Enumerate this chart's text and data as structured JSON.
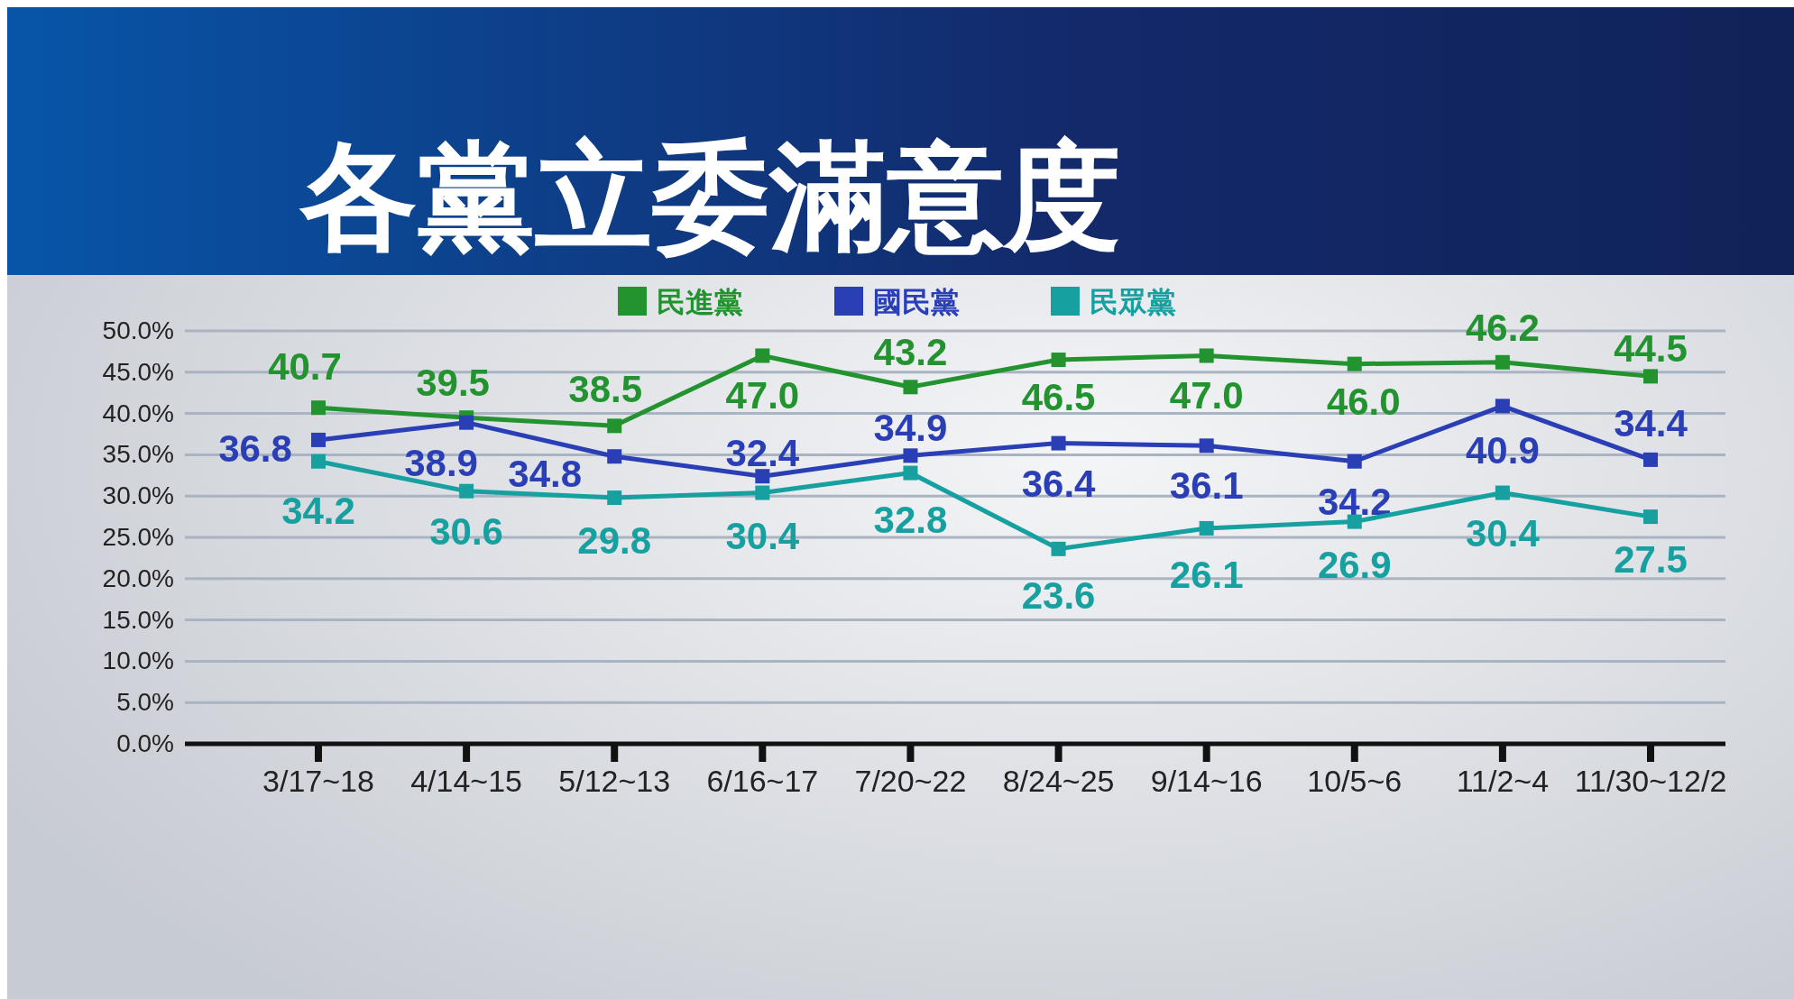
{
  "chart_data": {
    "type": "line",
    "title": "各黨立委滿意度",
    "categories": [
      "3/17~18",
      "4/14~15",
      "5/12~13",
      "6/16~17",
      "7/20~22",
      "8/24~25",
      "9/14~16",
      "10/5~6",
      "11/2~4",
      "11/30~12/2"
    ],
    "series": [
      {
        "name": "民進黨",
        "color": "#22932f",
        "values": [
          40.7,
          39.5,
          38.5,
          47.0,
          43.2,
          46.5,
          47.0,
          46.0,
          46.2,
          44.5
        ],
        "value_labels": [
          "40.7",
          "39.5",
          "38.5",
          "47.0",
          "43.2",
          "46.5",
          "47.0",
          "46.0",
          "46.2",
          "44.5"
        ]
      },
      {
        "name": "國民黨",
        "color": "#2a3fb5",
        "values": [
          36.8,
          38.9,
          34.8,
          32.4,
          34.9,
          36.4,
          36.1,
          34.2,
          40.9,
          34.4
        ],
        "value_labels": [
          "36.8",
          "38.9",
          "34.8",
          "32.4",
          "34.9",
          "36.4",
          "36.1",
          "34.2",
          "40.9",
          "34.4"
        ]
      },
      {
        "name": "民眾黨",
        "color": "#16a0a0",
        "values": [
          34.2,
          30.6,
          29.8,
          30.4,
          32.8,
          23.6,
          26.1,
          26.9,
          30.4,
          27.5
        ],
        "value_labels": [
          "34.2",
          "30.6",
          "29.8",
          "30.4",
          "32.8",
          "23.6",
          "26.1",
          "26.9",
          "30.4",
          "27.5"
        ]
      }
    ],
    "ylim": [
      0,
      50
    ],
    "yticks": [
      {
        "value": 0,
        "label": "0.0%"
      },
      {
        "value": 5,
        "label": "5.0%"
      },
      {
        "value": 10,
        "label": "10.0%"
      },
      {
        "value": 15,
        "label": "15.0%"
      },
      {
        "value": 20,
        "label": "20.0%"
      },
      {
        "value": 25,
        "label": "25.0%"
      },
      {
        "value": 30,
        "label": "30.0%"
      },
      {
        "value": 35,
        "label": "35.0%"
      },
      {
        "value": 40,
        "label": "40.0%"
      },
      {
        "value": 45,
        "label": "45.0%"
      },
      {
        "value": 50,
        "label": "50.0%"
      }
    ],
    "grid": "y",
    "legend": "top",
    "marker": "square",
    "line_style": "solid"
  }
}
